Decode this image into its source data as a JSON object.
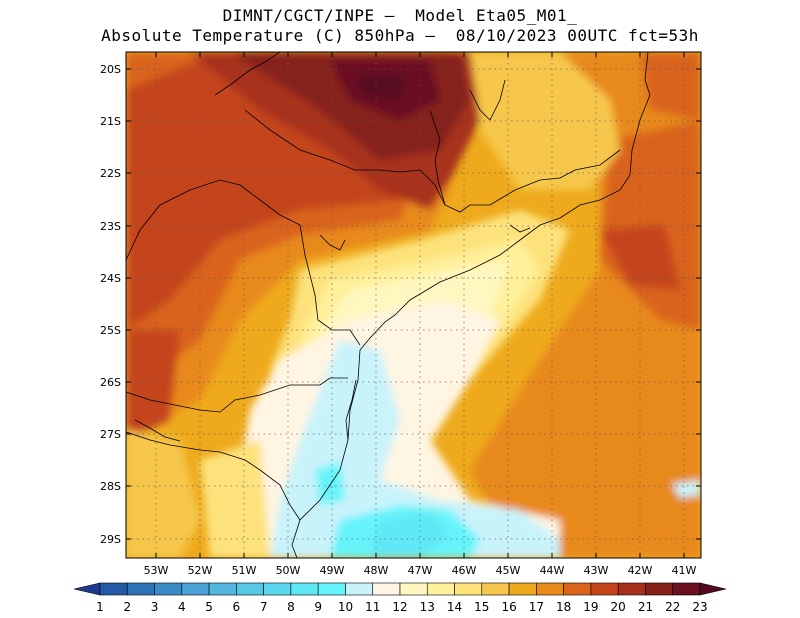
{
  "header": {
    "line1": "DIMNT/CGCT/INPE –  Model Eta05_M01_",
    "line2": "Absolute Temperature (C) 850hPa –  08/10/2023 00UTC fct=53h"
  },
  "map": {
    "lat_labels": [
      "20S",
      "21S",
      "22S",
      "23S",
      "24S",
      "25S",
      "26S",
      "27S",
      "28S",
      "29S"
    ],
    "lon_labels": [
      "53W",
      "52W",
      "51W",
      "50W",
      "49W",
      "48W",
      "47W",
      "46W",
      "45W",
      "44W",
      "43W",
      "42W",
      "41W"
    ],
    "lat_range": [
      -29.4,
      -19.8
    ],
    "lon_range": [
      -53.6,
      -40.6
    ],
    "grid": "dotted",
    "field": "Absolute Temperature (C) 850hPa"
  },
  "colorbar": {
    "labels": [
      "1",
      "2",
      "3",
      "4",
      "5",
      "6",
      "7",
      "8",
      "9",
      "10",
      "11",
      "12",
      "13",
      "14",
      "15",
      "16",
      "17",
      "18",
      "19",
      "20",
      "21",
      "22",
      "23"
    ],
    "colors": [
      "#1d3a8f",
      "#235aa8",
      "#2b73b8",
      "#3a8cc8",
      "#4aa2d6",
      "#52b6e0",
      "#58c8e6",
      "#5cd8ee",
      "#5ee8f6",
      "#66f4fa",
      "#c9f3fb",
      "#fff5e2",
      "#fff7bf",
      "#fff09a",
      "#fde27c",
      "#f6c74c",
      "#eeaa1c",
      "#e8891a",
      "#d9641a",
      "#c4451a",
      "#a8301a",
      "#86201a",
      "#6a1021",
      "#560820"
    ]
  }
}
